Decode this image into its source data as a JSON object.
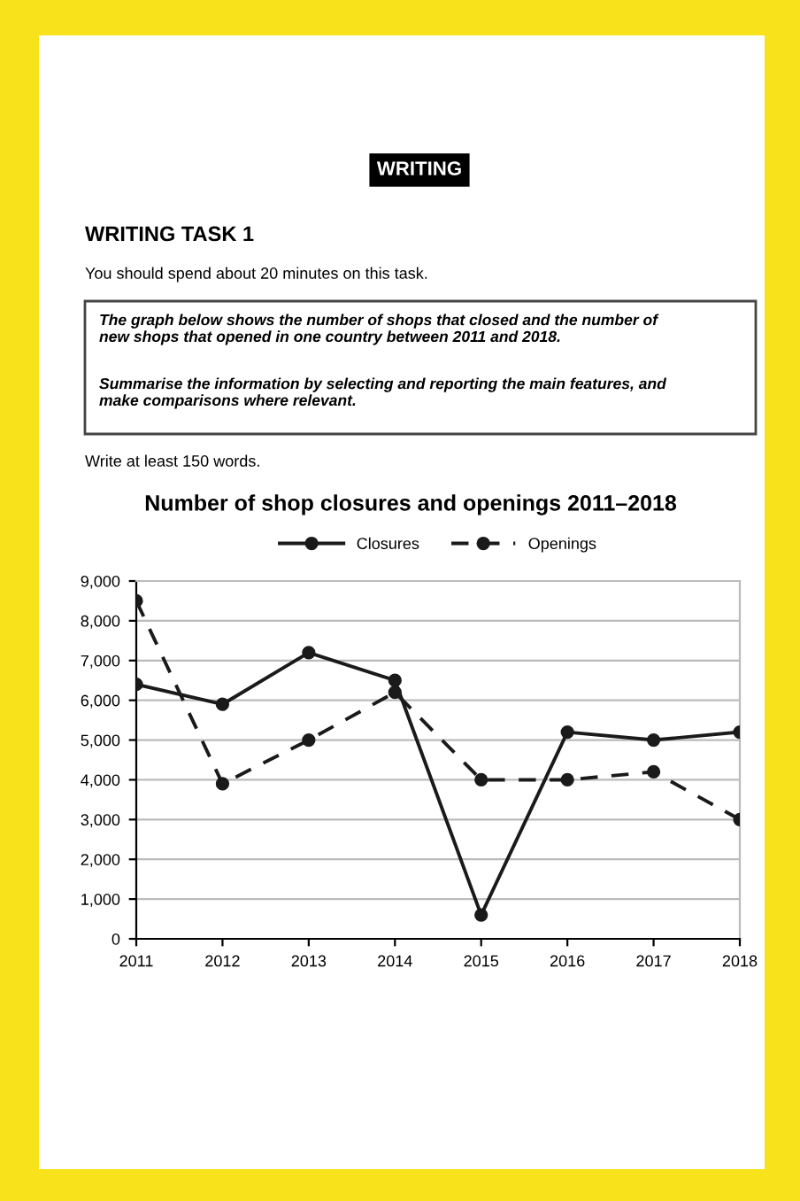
{
  "chart_data": {
    "type": "line",
    "title": "Number of shop closures and openings 2011–2018",
    "x": [
      2011,
      2012,
      2013,
      2014,
      2015,
      2016,
      2017,
      2018
    ],
    "series": [
      {
        "name": "Closures",
        "color": "#1a1a1a",
        "line_style": "solid",
        "values": [
          6400,
          5900,
          7200,
          6500,
          600,
          5200,
          5000,
          5200
        ]
      },
      {
        "name": "Openings",
        "color": "#1a1a1a",
        "line_style": "dashed",
        "values": [
          8500,
          3900,
          5000,
          6200,
          4000,
          4000,
          4200,
          3000
        ]
      }
    ],
    "xlim": [
      2011,
      2018
    ],
    "xticks": [
      2011,
      2012,
      2013,
      2014,
      2015,
      2016,
      2017,
      2018
    ],
    "ylim": [
      0,
      9000
    ],
    "yticks": [
      0,
      {
        "value": 1000,
        "label": "1,000"
      },
      {
        "value": 2000,
        "label": "2,000"
      },
      {
        "value": 3000,
        "label": "3,000"
      },
      {
        "value": 4000,
        "label": "4,000"
      },
      {
        "value": 5000,
        "label": "5,000"
      },
      {
        "value": 6000,
        "label": "6,000"
      },
      {
        "value": 7000,
        "label": "7,000"
      },
      {
        "value": 8000,
        "label": "8,000"
      },
      {
        "value": 9000,
        "label": "9,000"
      }
    ],
    "grid": "y",
    "legend": "top",
    "marker": "circle",
    "annotations": [
      "WRITING",
      "WRITING TASK 1",
      "You should spend about 20 minutes on this task.",
      "The graph below shows the number of shops that closed and the number of\nnew shops that opened in one country between 2011 and 2018.",
      "Summarise the information by selecting and reporting the main features, and\nmake comparisons where relevant.",
      "Write at least 150 words."
    ]
  }
}
